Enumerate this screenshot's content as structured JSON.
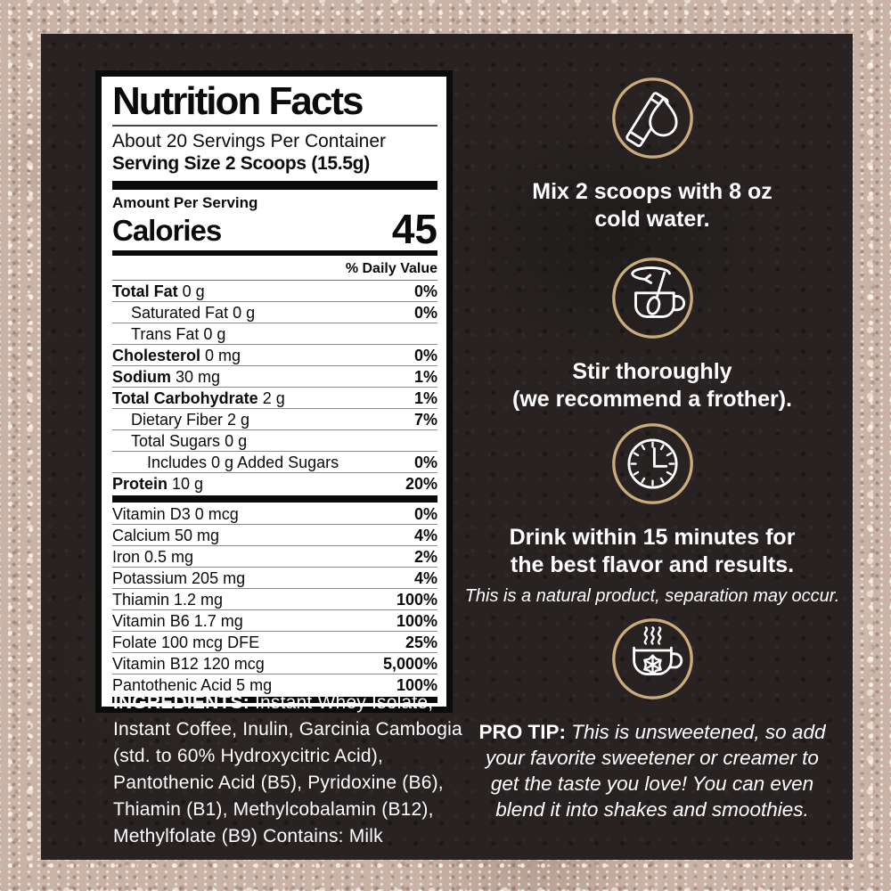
{
  "colors": {
    "gold": "#c9ab7c",
    "panel_bg": "#282322",
    "powder_bg": "#c9b3a6",
    "label_bg": "#ffffff",
    "label_text": "#0b0b0b",
    "light_text": "#ffffff"
  },
  "label": {
    "title": "Nutrition Facts",
    "servings": "About 20 Servings Per Container",
    "serving_size": "Serving Size 2 Scoops (15.5g)",
    "amount_per_serving": "Amount Per Serving",
    "calories_label": "Calories",
    "calories_value": "45",
    "daily_value_header": "% Daily Value",
    "rows": [
      {
        "name": "Total Fat",
        "amount": "0 g",
        "dv": "0%",
        "bold": true,
        "indent": 0
      },
      {
        "name": "Saturated Fat",
        "amount": "0 g",
        "dv": "0%",
        "bold": false,
        "indent": 1
      },
      {
        "name": "Trans Fat",
        "amount": "0 g",
        "dv": "",
        "bold": false,
        "indent": 1
      },
      {
        "name": "Cholesterol",
        "amount": "0 mg",
        "dv": "0%",
        "bold": true,
        "indent": 0
      },
      {
        "name": "Sodium",
        "amount": "30 mg",
        "dv": "1%",
        "bold": true,
        "indent": 0
      },
      {
        "name": "Total Carbohydrate",
        "amount": "2 g",
        "dv": "1%",
        "bold": true,
        "indent": 0
      },
      {
        "name": "Dietary Fiber",
        "amount": "2 g",
        "dv": "7%",
        "bold": false,
        "indent": 1
      },
      {
        "name": "Total Sugars",
        "amount": "0 g",
        "dv": "",
        "bold": false,
        "indent": 1
      },
      {
        "name": "Includes 0 g Added Sugars",
        "amount": "",
        "dv": "0%",
        "bold": false,
        "indent": 2
      },
      {
        "name": "Protein",
        "amount": "10 g",
        "dv": "20%",
        "bold": true,
        "indent": 0
      }
    ],
    "vitamins": [
      {
        "name": "Vitamin D3",
        "amount": "0 mcg",
        "dv": "0%",
        "bold": false,
        "indent": 0
      },
      {
        "name": "Calcium",
        "amount": "50 mg",
        "dv": "4%",
        "bold": false,
        "indent": 0
      },
      {
        "name": "Iron",
        "amount": "0.5 mg",
        "dv": "2%",
        "bold": false,
        "indent": 0
      },
      {
        "name": "Potassium",
        "amount": "205 mg",
        "dv": "4%",
        "bold": false,
        "indent": 0
      },
      {
        "name": "Thiamin",
        "amount": "1.2 mg",
        "dv": "100%",
        "bold": false,
        "indent": 0
      },
      {
        "name": "Vitamin B6",
        "amount": "1.7 mg",
        "dv": "100%",
        "bold": false,
        "indent": 0
      },
      {
        "name": "Folate",
        "amount": "100 mcg DFE",
        "dv": "25%",
        "bold": false,
        "indent": 0
      },
      {
        "name": "Vitamin B12",
        "amount": "120 mcg",
        "dv": "5,000%",
        "bold": false,
        "indent": 0
      },
      {
        "name": "Pantothenic Acid",
        "amount": "5 mg",
        "dv": "100%",
        "bold": false,
        "indent": 0
      }
    ]
  },
  "ingredients": {
    "label": "INGREDIENTS:",
    "text": "Instant Whey Isolate, Instant Coffee, Inulin, Garcinia Cambogia (std. to 60% Hydroxycitric Acid), Pantothenic Acid (B5), Pyridoxine (B6), Thiamin (B1), Methylcobalamin (B12), Methylfolate (B9) Contains: Milk"
  },
  "instructions": {
    "step1": {
      "icon": "stick-packet-water-drop-icon",
      "line1": "Mix 2 scoops with 8 oz",
      "line2": "cold water."
    },
    "step2": {
      "icon": "stir-cup-frother-icon",
      "line1": "Stir thoroughly",
      "line2": "(we recommend a frother)."
    },
    "step3": {
      "icon": "clock-icon",
      "line1": "Drink within 15 minutes for",
      "line2": "the best flavor and results.",
      "note": "This is a natural product, separation may occur."
    },
    "step4": {
      "icon": "hot-cold-cup-icon",
      "tip_label": "PRO TIP:",
      "tip_text": "This is unsweetened, so add your favorite sweetener or creamer to get the taste you love! You can even blend it into shakes and smoothies."
    }
  }
}
